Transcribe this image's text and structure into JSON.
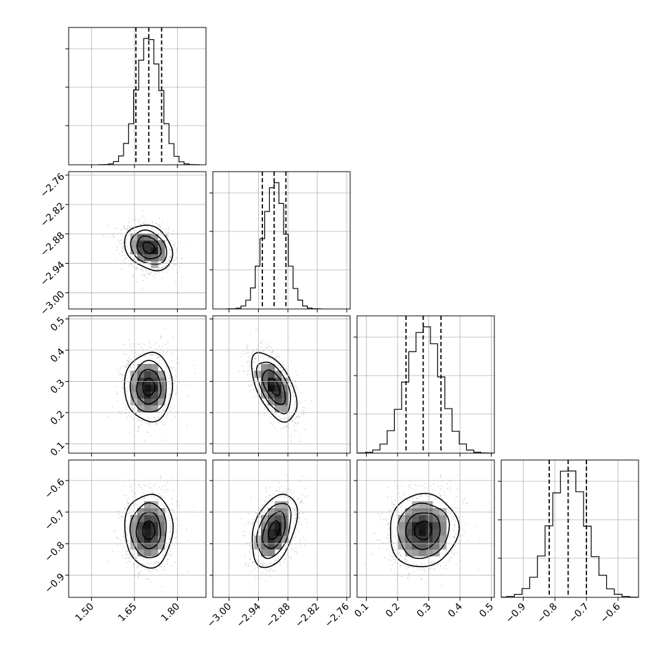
{
  "chart_data": {
    "type": "corner",
    "grid": true,
    "parameters": [
      {
        "mean": 1.7,
        "sd": 0.042,
        "range": [
          1.42,
          1.9
        ],
        "ticks": [
          1.5,
          1.65,
          1.8
        ],
        "tick_labels": [
          "1.50",
          "1.65",
          "1.80"
        ],
        "quantiles": [
          1.655,
          1.7,
          1.745
        ]
      },
      {
        "mean": -2.908,
        "sd": 0.023,
        "range": [
          -3.033,
          -2.753
        ],
        "ticks": [
          -3.0,
          -2.94,
          -2.88,
          -2.82,
          -2.76
        ],
        "tick_labels": [
          "−3.00",
          "−2.94",
          "−2.88",
          "−2.82",
          "−2.76"
        ],
        "quantiles": [
          -2.932,
          -2.908,
          -2.884
        ]
      },
      {
        "mean": 0.282,
        "sd": 0.055,
        "range": [
          0.07,
          0.51
        ],
        "ticks": [
          0.1,
          0.2,
          0.3,
          0.4,
          0.5
        ],
        "tick_labels": [
          "0.1",
          "0.2",
          "0.3",
          "0.4",
          "0.5"
        ],
        "quantiles": [
          0.227,
          0.282,
          0.339
        ]
      },
      {
        "mean": -0.758,
        "sd": 0.058,
        "range": [
          -0.97,
          -0.535
        ],
        "ticks": [
          -0.9,
          -0.8,
          -0.7,
          -0.6
        ],
        "tick_labels": [
          "−0.9",
          "−0.8",
          "−0.7",
          "−0.6"
        ],
        "quantiles": [
          -0.818,
          -0.758,
          -0.7
        ]
      }
    ],
    "correlations": [
      {
        "pair": [
          0,
          1
        ],
        "rho": -0.25
      },
      {
        "pair": [
          0,
          2
        ],
        "rho": 0.0
      },
      {
        "pair": [
          1,
          2
        ],
        "rho": -0.55
      },
      {
        "pair": [
          0,
          3
        ],
        "rho": 0.0
      },
      {
        "pair": [
          1,
          3
        ],
        "rho": 0.4
      },
      {
        "pair": [
          2,
          3
        ],
        "rho": 0.05
      }
    ],
    "contour_sigma_levels": [
      0.5,
      1.0,
      1.5,
      2.0
    ],
    "histogram_bins": 20
  }
}
